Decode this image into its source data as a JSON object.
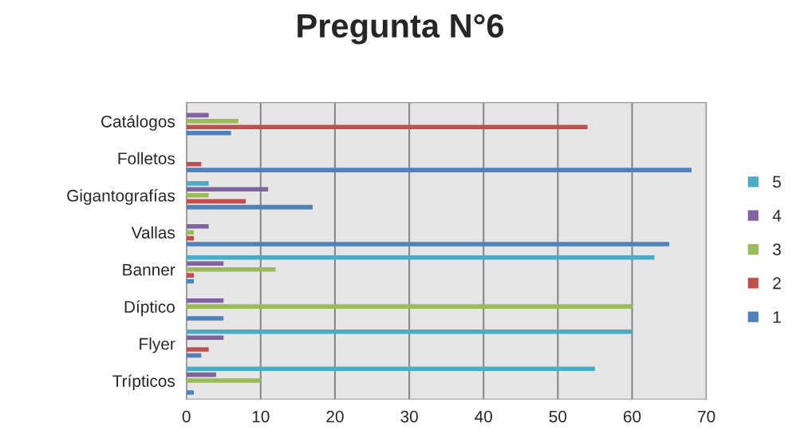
{
  "chart_data": {
    "type": "bar",
    "orientation": "horizontal",
    "title": "Pregunta N°6",
    "categories": [
      "Catálogos",
      "Folletos",
      "Gigantografías",
      "Vallas",
      "Banner",
      "Díptico",
      "Flyer",
      "Trípticos"
    ],
    "series": [
      {
        "name": "5",
        "color": "#4bacc6",
        "values": [
          0,
          0,
          3,
          0,
          63,
          0,
          60,
          55
        ]
      },
      {
        "name": "4",
        "color": "#8064a2",
        "values": [
          3,
          0,
          11,
          3,
          5,
          5,
          5,
          4
        ]
      },
      {
        "name": "3",
        "color": "#9bbb59",
        "values": [
          7,
          0,
          3,
          1,
          12,
          60,
          0,
          10
        ]
      },
      {
        "name": "2",
        "color": "#c0504d",
        "values": [
          54,
          2,
          8,
          1,
          1,
          0,
          3,
          0
        ]
      },
      {
        "name": "1",
        "color": "#4f81bd",
        "values": [
          6,
          68,
          17,
          65,
          1,
          5,
          2,
          1
        ]
      }
    ],
    "xlim": [
      0,
      70
    ],
    "xticks": [
      0,
      10,
      20,
      30,
      40,
      50,
      60,
      70
    ],
    "grid": "x",
    "legend": "right"
  }
}
